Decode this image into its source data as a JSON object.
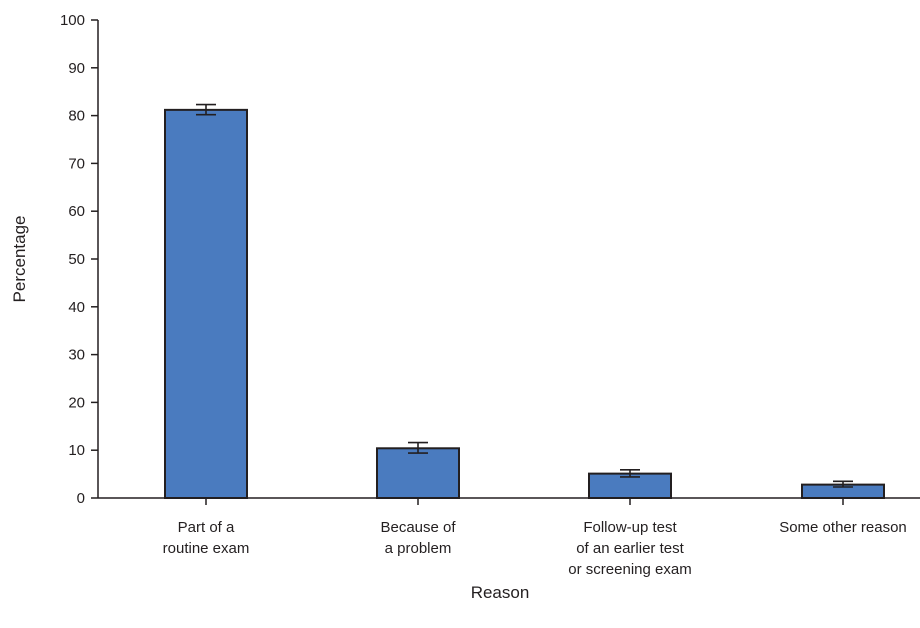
{
  "chart_data": {
    "type": "bar",
    "categories": [
      [
        "Part of a",
        "routine exam"
      ],
      [
        "Because of",
        "a problem"
      ],
      [
        "Follow-up test",
        "of an earlier test",
        "or screening exam"
      ],
      [
        "Some other reason"
      ]
    ],
    "values": [
      81.2,
      10.4,
      5.1,
      2.8
    ],
    "error_bars": [
      [
        80.2,
        82.3
      ],
      [
        9.4,
        11.6
      ],
      [
        4.4,
        5.9
      ],
      [
        2.3,
        3.5
      ]
    ],
    "xlabel": "Reason",
    "ylabel": "Percentage",
    "ylim": [
      0,
      100
    ],
    "yticks": [
      "0",
      "10",
      "20",
      "30",
      "40",
      "50",
      "60",
      "70",
      "80",
      "90",
      "100"
    ],
    "bar_color": "#4a7bbf",
    "grid": false
  }
}
